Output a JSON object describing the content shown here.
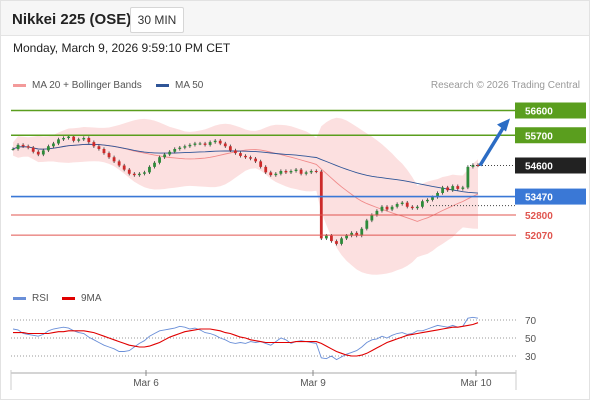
{
  "header": {
    "title": "Nikkei 225 (OSE)",
    "timeframe": "30 MIN"
  },
  "datetime": "Monday, March 9, 2026 9:59:10 PM CET",
  "legend": {
    "ma20": "MA 20 + Bollinger Bands",
    "ma50": "MA 50",
    "rsi": "RSI",
    "ma9": "9MA"
  },
  "credit": "Research © 2026 Trading Central",
  "colors": {
    "resistance": "#5a9e1e",
    "support": "#3a78d6",
    "sup_red": "#e0554f",
    "current": "#222222",
    "ma20": "#f08a8a",
    "ma50": "#2f5597",
    "band_fill": "#fbd5d5",
    "candle_up": "#2e8b3a",
    "candle_down": "#cc2a2a",
    "rsi": "#6a8fd8",
    "rsi_ma": "#e00000",
    "arrow": "#2b6cc4"
  },
  "chart_data": [
    {
      "type": "candlestick",
      "title": "Nikkei 225 (OSE)",
      "timeframe": "30 MIN",
      "x_ticks": [
        "Mar 6",
        "Mar 9",
        "Mar 10"
      ],
      "ylim": [
        51200,
        57200
      ],
      "levels": [
        {
          "label": "56600",
          "value": 56600,
          "kind": "resistance"
        },
        {
          "label": "55700",
          "value": 55700,
          "kind": "resistance"
        },
        {
          "label": "54600",
          "value": 54600,
          "kind": "current"
        },
        {
          "label": "53470",
          "value": 53470,
          "kind": "pivot"
        },
        {
          "label": "52800",
          "value": 52800,
          "kind": "support"
        },
        {
          "label": "52070",
          "value": 52070,
          "kind": "support"
        }
      ],
      "close_series": [
        55200,
        55350,
        55300,
        55250,
        55100,
        55000,
        55150,
        55300,
        55400,
        55550,
        55600,
        55650,
        55500,
        55550,
        55600,
        55450,
        55300,
        55200,
        55050,
        54900,
        54750,
        54600,
        54450,
        54300,
        54250,
        54300,
        54350,
        54550,
        54700,
        54900,
        55000,
        55100,
        55200,
        55250,
        55300,
        55350,
        55400,
        55400,
        55350,
        55450,
        55500,
        55400,
        55300,
        55150,
        55050,
        54950,
        54900,
        54850,
        54750,
        54550,
        54350,
        54250,
        54300,
        54400,
        54350,
        54400,
        54450,
        54300,
        54350,
        54400,
        54380,
        51950,
        52050,
        51850,
        51750,
        51950,
        52050,
        52150,
        52050,
        52300,
        52600,
        52800,
        52950,
        53100,
        53000,
        53100,
        53200,
        53250,
        53100,
        53050,
        53100,
        53300,
        53350,
        53450,
        53600,
        53800,
        53700,
        53850,
        53750,
        53800,
        54550,
        54620,
        54600
      ]
    },
    {
      "type": "line",
      "title": "RSI",
      "series": [
        {
          "name": "RSI",
          "values": [
            60,
            59,
            55,
            54,
            53,
            52,
            54,
            58,
            60,
            61,
            62,
            61,
            58,
            56,
            55,
            51,
            48,
            45,
            42,
            40,
            38,
            35,
            35,
            36,
            40,
            44,
            47,
            52,
            55,
            58,
            59,
            60,
            61,
            63,
            62,
            60,
            61,
            59,
            56,
            55,
            53,
            50,
            48,
            45,
            44,
            45,
            44,
            46,
            45,
            46,
            44,
            42,
            46,
            50,
            48,
            44,
            46,
            47,
            46,
            45,
            44,
            28,
            27,
            30,
            26,
            29,
            32,
            34,
            36,
            40,
            45,
            48,
            49,
            52,
            50,
            53,
            55,
            56,
            54,
            55,
            58,
            58,
            60,
            62,
            64,
            63,
            62,
            64,
            62,
            63,
            72,
            73,
            72
          ]
        },
        {
          "name": "9MA",
          "values": [
            56,
            56,
            56,
            55,
            55,
            55,
            55,
            55,
            56,
            57,
            57,
            58,
            58,
            58,
            58,
            57,
            56,
            54,
            52,
            50,
            48,
            46,
            44,
            42,
            41,
            40,
            40,
            41,
            43,
            45,
            48,
            51,
            53,
            55,
            57,
            58,
            59,
            60,
            60,
            60,
            59,
            58,
            56,
            55,
            53,
            51,
            50,
            48,
            47,
            46,
            45,
            45,
            45,
            45,
            45,
            45,
            46,
            46,
            46,
            46,
            46,
            44,
            41,
            38,
            35,
            33,
            31,
            30,
            30,
            31,
            33,
            36,
            39,
            42,
            45,
            47,
            49,
            51,
            53,
            54,
            55,
            56,
            57,
            58,
            59,
            60,
            61,
            62,
            62,
            63,
            64,
            65,
            67
          ]
        }
      ],
      "ylim": [
        20,
        80
      ],
      "y_ticks": [
        70,
        50,
        30
      ]
    }
  ]
}
